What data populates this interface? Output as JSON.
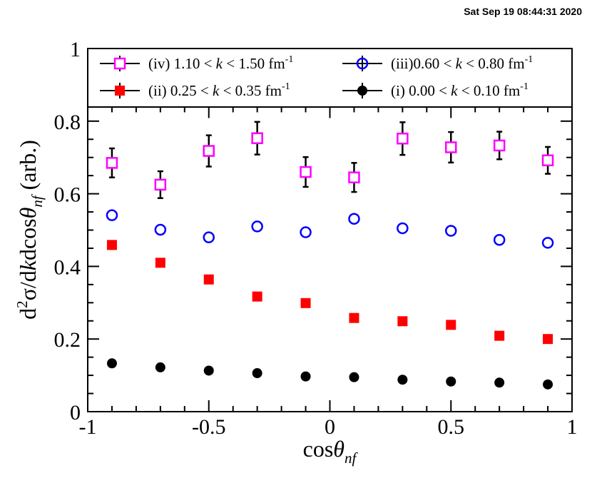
{
  "timestamp": "Sat Sep 19 08:44:31 2020",
  "chart_data": {
    "type": "scatter",
    "xlabel": {
      "base": "cos",
      "symbol": "θ",
      "sub": "nf"
    },
    "ylabel": {
      "prefix": "d",
      "sup": "2",
      "mid": "σ/d",
      "k": "k",
      "mid2": "dcos",
      "symbol": "θ",
      "sub": "nf",
      "suffix": " (arb.)"
    },
    "xlim": [
      -1,
      1
    ],
    "ylim": [
      0,
      1
    ],
    "frame_top": 0.84,
    "x_ticks": [
      -1,
      -0.5,
      0,
      0.5,
      1
    ],
    "x_tick_labels": [
      "-1",
      "-0.5",
      "0",
      "0.5",
      "1"
    ],
    "y_ticks": [
      0,
      0.2,
      0.4,
      0.6,
      0.8,
      1
    ],
    "y_tick_labels": [
      "0",
      "0.2",
      "0.4",
      "0.6",
      "0.8",
      "1"
    ],
    "x": [
      -0.9,
      -0.7,
      -0.5,
      -0.3,
      -0.1,
      0.1,
      0.3,
      0.5,
      0.7,
      0.9
    ],
    "series": [
      {
        "id": "iv",
        "legend": {
          "pre": "(iv) 1.10 < ",
          "k": "k",
          "post": " < 1.50 fm",
          "sup": "-1"
        },
        "marker": "open-square",
        "color": "#ff00ff",
        "values": [
          0.685,
          0.625,
          0.718,
          0.753,
          0.66,
          0.645,
          0.752,
          0.728,
          0.733,
          0.692
        ],
        "errors": [
          0.04,
          0.037,
          0.043,
          0.045,
          0.041,
          0.04,
          0.045,
          0.042,
          0.038,
          0.037
        ]
      },
      {
        "id": "iii",
        "legend": {
          "pre": "(iii)0.60 < ",
          "k": "k",
          "post": " < 0.80 fm",
          "sup": "-1"
        },
        "marker": "open-circle",
        "color": "#0000ff",
        "values": [
          0.541,
          0.501,
          0.48,
          0.51,
          0.494,
          0.531,
          0.505,
          0.498,
          0.473,
          0.465
        ],
        "errors": [
          0,
          0,
          0,
          0,
          0,
          0,
          0,
          0,
          0,
          0
        ]
      },
      {
        "id": "ii",
        "legend": {
          "pre": "(ii) 0.25 < ",
          "k": "k",
          "post": " < 0.35 fm",
          "sup": "-1"
        },
        "marker": "filled-square",
        "color": "#ff0000",
        "values": [
          0.459,
          0.41,
          0.364,
          0.317,
          0.299,
          0.258,
          0.249,
          0.239,
          0.209,
          0.2
        ],
        "errors": [
          0,
          0,
          0,
          0,
          0,
          0,
          0,
          0,
          0,
          0
        ]
      },
      {
        "id": "i",
        "legend": {
          "pre": "(i) 0.00 < ",
          "k": "k",
          "post": " < 0.10 fm",
          "sup": "-1"
        },
        "marker": "filled-circle",
        "color": "#000000",
        "values": [
          0.133,
          0.122,
          0.113,
          0.106,
          0.097,
          0.095,
          0.088,
          0.083,
          0.08,
          0.075
        ],
        "errors": [
          0,
          0,
          0,
          0,
          0,
          0,
          0,
          0,
          0,
          0
        ]
      }
    ],
    "legend_order": [
      [
        "iv",
        "iii"
      ],
      [
        "ii",
        "i"
      ]
    ],
    "legend_position": "top"
  }
}
